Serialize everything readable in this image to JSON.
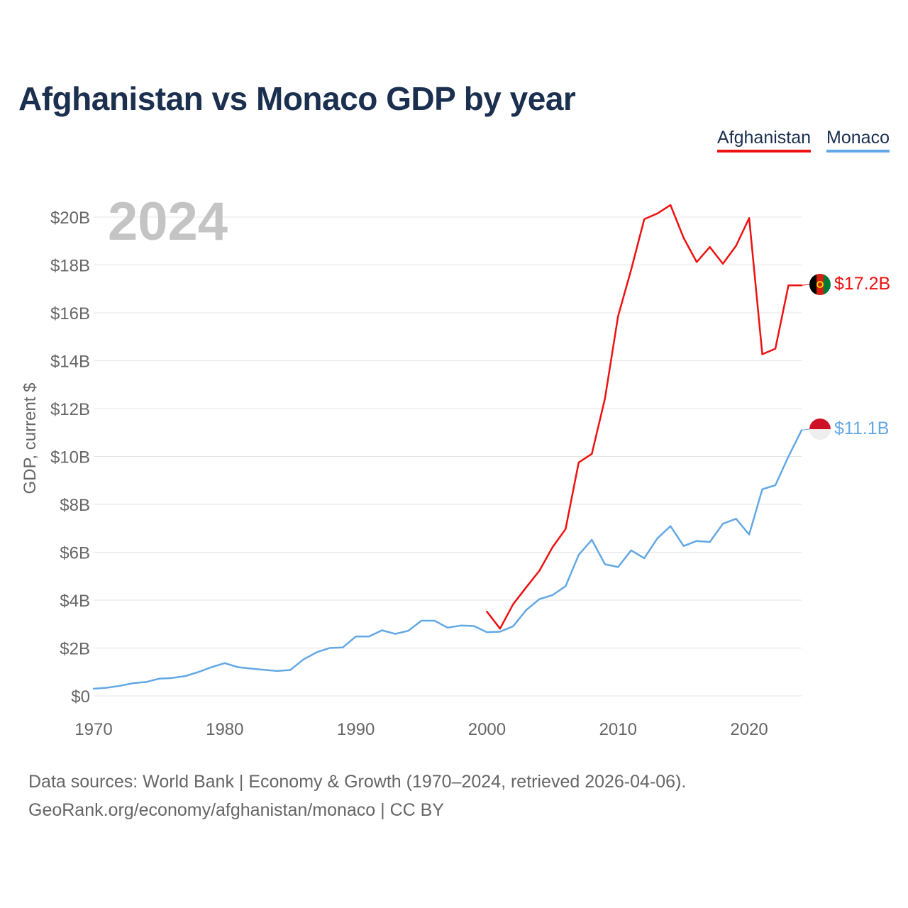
{
  "title": "Afghanistan vs Monaco GDP by year",
  "year_label": "2024",
  "legend": {
    "afghanistan": "Afghanistan",
    "monaco": "Monaco"
  },
  "footer": {
    "sources": "Data sources: World Bank | Economy & Growth (1970–2024, retrieved 2026-04-06).",
    "site": "GeoRank.org/economy/afghanistan/monaco | CC BY"
  },
  "colors": {
    "afghanistan": "#ee1111",
    "monaco": "#62a8e5",
    "title": "#1b2f4e",
    "grid": "#e4e4e4",
    "axis_text": "#666666",
    "year": "#c4c4c4"
  },
  "chart_data": {
    "type": "line",
    "title": "Afghanistan vs Monaco GDP by year",
    "xlabel": "",
    "ylabel": "GDP, current $",
    "xlim": [
      1970,
      2024
    ],
    "ylim": [
      0,
      20
    ],
    "y_unit": "billions of current US$",
    "x_ticks": [
      1970,
      1980,
      1990,
      2000,
      2010,
      2020
    ],
    "y_ticks": [
      0,
      2,
      4,
      6,
      8,
      10,
      12,
      14,
      16,
      18,
      20
    ],
    "y_tick_labels": [
      "$0",
      "$2B",
      "$4B",
      "$6B",
      "$8B",
      "$10B",
      "$12B",
      "$14B",
      "$16B",
      "$18B",
      "$20B"
    ],
    "grid": true,
    "legend_position": "top-right",
    "series": [
      {
        "name": "Afghanistan",
        "color": "#ee1111",
        "end_label": "$17.2B",
        "x": [
          2000,
          2001,
          2002,
          2003,
          2004,
          2005,
          2006,
          2007,
          2008,
          2009,
          2010,
          2011,
          2012,
          2013,
          2014,
          2015,
          2016,
          2017,
          2018,
          2019,
          2020,
          2021,
          2022,
          2023,
          2024
        ],
        "values": [
          3.52,
          2.81,
          3.83,
          4.54,
          5.23,
          6.21,
          6.97,
          9.75,
          10.11,
          12.42,
          15.86,
          17.8,
          19.91,
          20.15,
          20.5,
          19.13,
          18.12,
          18.75,
          18.05,
          18.8,
          19.96,
          14.27,
          14.5,
          17.15,
          17.15
        ]
      },
      {
        "name": "Monaco",
        "color": "#62a8e5",
        "end_label": "$11.1B",
        "x": [
          1970,
          1971,
          1972,
          1973,
          1974,
          1975,
          1976,
          1977,
          1978,
          1979,
          1980,
          1981,
          1982,
          1983,
          1984,
          1985,
          1986,
          1987,
          1988,
          1989,
          1990,
          1991,
          1992,
          1993,
          1994,
          1995,
          1996,
          1997,
          1998,
          1999,
          2000,
          2001,
          2002,
          2003,
          2004,
          2005,
          2006,
          2007,
          2008,
          2009,
          2010,
          2011,
          2012,
          2013,
          2014,
          2015,
          2016,
          2017,
          2018,
          2019,
          2020,
          2021,
          2022,
          2023,
          2024
        ],
        "values": [
          0.3,
          0.34,
          0.42,
          0.53,
          0.58,
          0.72,
          0.75,
          0.83,
          1.0,
          1.2,
          1.37,
          1.2,
          1.14,
          1.09,
          1.04,
          1.08,
          1.52,
          1.82,
          2.0,
          2.02,
          2.48,
          2.48,
          2.74,
          2.59,
          2.72,
          3.14,
          3.14,
          2.85,
          2.94,
          2.92,
          2.66,
          2.68,
          2.91,
          3.59,
          4.04,
          4.21,
          4.58,
          5.89,
          6.52,
          5.5,
          5.38,
          6.08,
          5.75,
          6.58,
          7.09,
          6.26,
          6.47,
          6.43,
          7.19,
          7.4,
          6.74,
          8.63,
          8.8,
          10.0,
          11.1
        ]
      }
    ]
  }
}
